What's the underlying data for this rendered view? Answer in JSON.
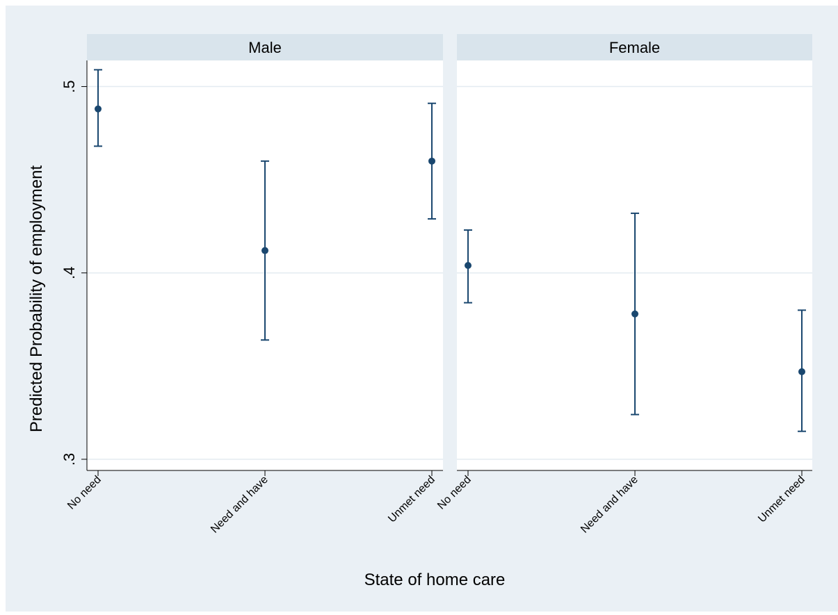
{
  "chart_data": {
    "type": "scatter",
    "subtype": "point estimates with confidence intervals, faceted",
    "ylabel": "Predicted Probability of employment",
    "xlabel": "State of home care",
    "categories": [
      "No need",
      "Need and have",
      "Unmet need"
    ],
    "y_ticks": [
      0.3,
      0.4,
      0.5
    ],
    "y_tick_labels": [
      ".3",
      ".4",
      ".5"
    ],
    "ylim": [
      0.294,
      0.514
    ],
    "grid": true,
    "colors": {
      "outer_background": "#eaf0f5",
      "panel_background": "#ffffff",
      "panel_header": "#d9e4ec",
      "marker": "#1a476f",
      "gridline": "#e3ebf1",
      "axis": "#000000"
    },
    "panels": [
      {
        "title": "Male",
        "points": [
          {
            "category": "No need",
            "estimate": 0.488,
            "ci_low": 0.468,
            "ci_high": 0.509
          },
          {
            "category": "Need and have",
            "estimate": 0.412,
            "ci_low": 0.364,
            "ci_high": 0.46
          },
          {
            "category": "Unmet need",
            "estimate": 0.46,
            "ci_low": 0.429,
            "ci_high": 0.491
          }
        ]
      },
      {
        "title": "Female",
        "points": [
          {
            "category": "No need",
            "estimate": 0.404,
            "ci_low": 0.384,
            "ci_high": 0.423
          },
          {
            "category": "Need and have",
            "estimate": 0.378,
            "ci_low": 0.324,
            "ci_high": 0.432
          },
          {
            "category": "Unmet need",
            "estimate": 0.347,
            "ci_low": 0.315,
            "ci_high": 0.38
          }
        ]
      }
    ]
  }
}
